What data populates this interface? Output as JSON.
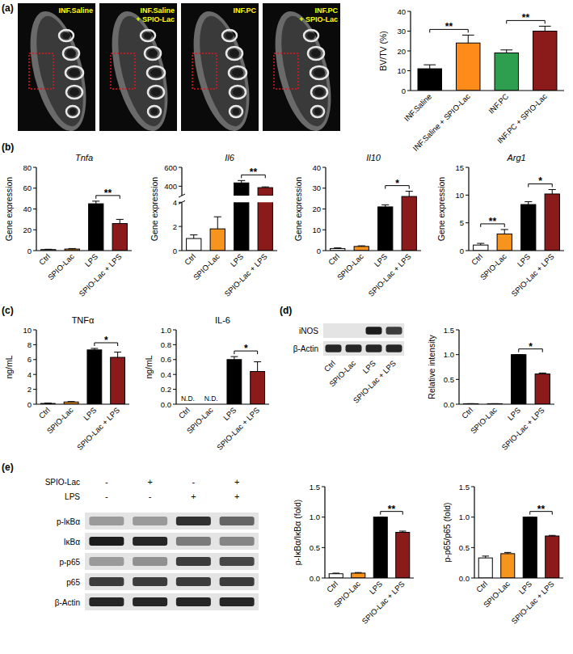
{
  "panel_labels": [
    "(a)",
    "(b)",
    "(c)",
    "(d)",
    "(e)"
  ],
  "images": [
    {
      "label_lines": [
        "INF.Saline"
      ]
    },
    {
      "label_lines": [
        "INF.Saline",
        "+ SPIO-Lac"
      ]
    },
    {
      "label_lines": [
        "INF.PC"
      ]
    },
    {
      "label_lines": [
        "INF.PC",
        "+ SPIO-Lac"
      ]
    }
  ],
  "blots": [
    {
      "categories": [
        "Ctrl",
        "SPIO-Lac",
        "LPS",
        "SPIO-Lac + LPS"
      ],
      "rows": [
        {
          "label": "iNOS",
          "bands": [
            0,
            0,
            0.95,
            0.8
          ]
        },
        {
          "label": "β-Actin",
          "bands": [
            0.9,
            0.9,
            0.9,
            0.9
          ]
        }
      ]
    },
    {
      "conditions": [
        {
          "label": "SPIO-Lac",
          "signs": [
            "-",
            "+",
            "-",
            "+"
          ]
        },
        {
          "label": "LPS",
          "signs": [
            "-",
            "-",
            "+",
            "+"
          ]
        }
      ],
      "rows": [
        {
          "label": "p-IκBα",
          "bands": [
            0.35,
            0.35,
            0.85,
            0.6
          ]
        },
        {
          "label": "IκBα",
          "bands": [
            0.95,
            0.9,
            0.5,
            0.45
          ]
        },
        {
          "label": "p-p65",
          "bands": [
            0.35,
            0.4,
            0.8,
            0.75
          ]
        },
        {
          "label": "p65",
          "bands": [
            0.8,
            0.8,
            0.8,
            0.8
          ]
        },
        {
          "label": "β-Actin",
          "bands": [
            0.9,
            0.9,
            0.9,
            0.9
          ]
        }
      ]
    }
  ],
  "chart_data": [
    {
      "type": "bar",
      "y_label": "BV/TV (%)",
      "categories": [
        "INF.Saline",
        "INF.Saline + SPIO-Lac",
        "INF.PC",
        "INF.PC + SPIO-Lac"
      ],
      "values": [
        11,
        24,
        19,
        30
      ],
      "errors": [
        2,
        4,
        1.5,
        2.5
      ],
      "colors": [
        "#000000",
        "#ff8c1a",
        "#2e9e4f",
        "#8b1a1a"
      ],
      "ylim": [
        0,
        40
      ],
      "yticks": [
        0,
        10,
        20,
        30,
        40
      ],
      "significance": [
        {
          "from": 0,
          "to": 1,
          "label": "**"
        },
        {
          "from": 2,
          "to": 3,
          "label": "**"
        }
      ]
    },
    {
      "type": "bar",
      "title": "Tnfa",
      "y_label": "Gene expression",
      "categories": [
        "Ctrl",
        "SPIO-Lac",
        "LPS",
        "SPIO-Lac + LPS"
      ],
      "values": [
        1,
        1.5,
        45,
        26
      ],
      "errors": [
        0.3,
        0.5,
        2.5,
        4
      ],
      "colors": [
        "#ffffff",
        "#f7941d",
        "#000000",
        "#8b1a1a"
      ],
      "ylim": [
        0,
        80
      ],
      "yticks": [
        0,
        20,
        40,
        60,
        80
      ],
      "significance": [
        {
          "from": 2,
          "to": 3,
          "label": "**"
        }
      ]
    },
    {
      "type": "bar",
      "title": "Il6",
      "y_label": "Gene expression",
      "categories": [
        "Ctrl",
        "SPIO-Lac",
        "LPS",
        "SPIO-Lac + LPS"
      ],
      "values": [
        1,
        1.8,
        435,
        385
      ],
      "errors": [
        0.3,
        1,
        25,
        8
      ],
      "colors": [
        "#ffffff",
        "#f7941d",
        "#000000",
        "#8b1a1a"
      ],
      "axis_segments": [
        {
          "ylim": [
            0,
            4
          ],
          "yticks": [
            0,
            2,
            4
          ]
        },
        {
          "ylim": [
            300,
            600
          ],
          "yticks": [
            400,
            600
          ]
        }
      ],
      "significance": [
        {
          "from": 2,
          "to": 3,
          "label": "**"
        }
      ]
    },
    {
      "type": "bar",
      "title": "Il10",
      "y_label": "Gene expression",
      "categories": [
        "Ctrl",
        "SPIO-Lac",
        "LPS",
        "SPIO-Lac + LPS"
      ],
      "values": [
        1,
        2,
        21,
        26
      ],
      "errors": [
        0.3,
        0.3,
        1,
        2.5
      ],
      "colors": [
        "#ffffff",
        "#f7941d",
        "#000000",
        "#8b1a1a"
      ],
      "ylim": [
        0,
        40
      ],
      "yticks": [
        0,
        10,
        20,
        30,
        40
      ],
      "significance": [
        {
          "from": 2,
          "to": 3,
          "label": "*"
        }
      ]
    },
    {
      "type": "bar",
      "title": "Arg1",
      "y_label": "Gene expression",
      "categories": [
        "Ctrl",
        "SPIO-Lac",
        "LPS",
        "SPIO-Lac + LPS"
      ],
      "values": [
        1,
        3,
        8.3,
        10.2
      ],
      "errors": [
        0.3,
        0.8,
        0.5,
        0.8
      ],
      "colors": [
        "#ffffff",
        "#f7941d",
        "#000000",
        "#8b1a1a"
      ],
      "ylim": [
        0,
        15
      ],
      "yticks": [
        0,
        5,
        10,
        15
      ],
      "significance": [
        {
          "from": 0,
          "to": 1,
          "label": "**"
        },
        {
          "from": 2,
          "to": 3,
          "label": "*"
        }
      ]
    },
    {
      "type": "bar",
      "title": "TNFα",
      "y_label": "ng/mL",
      "categories": [
        "Ctrl",
        "SPIO-Lac",
        "LPS",
        "SPIO-Lac + LPS"
      ],
      "values": [
        0.1,
        0.3,
        7.3,
        6.3
      ],
      "errors": [
        0.05,
        0.05,
        0.2,
        0.7
      ],
      "colors": [
        "#ffffff",
        "#f7941d",
        "#000000",
        "#8b1a1a"
      ],
      "ylim": [
        0,
        10
      ],
      "yticks": [
        0,
        2,
        4,
        6,
        8,
        10
      ],
      "significance": [
        {
          "from": 2,
          "to": 3,
          "label": "*"
        }
      ]
    },
    {
      "type": "bar",
      "title": "IL-6",
      "y_label": "ng/mL",
      "categories": [
        "Ctrl",
        "SPIO-Lac",
        "LPS",
        "SPIO-Lac + LPS"
      ],
      "values": [
        null,
        null,
        0.6,
        0.44
      ],
      "errors": [
        null,
        null,
        0.04,
        0.13
      ],
      "value_labels": [
        "N.D.",
        "N.D.",
        null,
        null
      ],
      "colors": [
        "#ffffff",
        "#f7941d",
        "#000000",
        "#8b1a1a"
      ],
      "ylim": [
        0,
        1
      ],
      "yticks": [
        {
          "value": 0,
          "label": "0.0"
        },
        0.2,
        0.4,
        0.6,
        0.8,
        {
          "value": 1,
          "label": "1.0"
        }
      ],
      "significance": [
        {
          "from": 2,
          "to": 3,
          "label": "*"
        }
      ]
    },
    {
      "type": "bar",
      "y_label": "Relative intensity",
      "categories": [
        "Ctrl",
        "SPIO-Lac",
        "LPS",
        "SPIO-Lac + LPS"
      ],
      "values": [
        0.01,
        0.01,
        1,
        0.61
      ],
      "errors": [
        0,
        0,
        0,
        0.02
      ],
      "colors": [
        "#ffffff",
        "#f7941d",
        "#000000",
        "#8b1a1a"
      ],
      "ylim": [
        0,
        1.5
      ],
      "yticks": [
        {
          "value": 0,
          "label": "0.0"
        },
        0.5,
        {
          "value": 1,
          "label": "1.0"
        },
        1.5
      ],
      "significance": [
        {
          "from": 2,
          "to": 3,
          "label": "*"
        }
      ]
    },
    {
      "type": "bar",
      "y_label": "p-IκBα/IκBα (fold)",
      "categories": [
        "Ctrl",
        "SPIO-Lac",
        "LPS",
        "SPIO-Lac + LPS"
      ],
      "values": [
        0.07,
        0.08,
        1,
        0.75
      ],
      "errors": [
        0.01,
        0.01,
        0,
        0.02
      ],
      "colors": [
        "#ffffff",
        "#f7941d",
        "#000000",
        "#8b1a1a"
      ],
      "ylim": [
        0,
        1.5
      ],
      "yticks": [
        {
          "value": 0,
          "label": "0.0"
        },
        0.5,
        {
          "value": 1,
          "label": "1.0"
        },
        1.5
      ],
      "significance": [
        {
          "from": 2,
          "to": 3,
          "label": "**"
        }
      ]
    },
    {
      "type": "bar",
      "y_label": "p-p65/p65 (fold)",
      "categories": [
        "Ctrl",
        "SPIO-Lac",
        "LPS",
        "SPIO-Lac + LPS"
      ],
      "values": [
        0.33,
        0.4,
        1,
        0.69
      ],
      "errors": [
        0.03,
        0.02,
        0,
        0.01
      ],
      "colors": [
        "#ffffff",
        "#f7941d",
        "#000000",
        "#8b1a1a"
      ],
      "ylim": [
        0,
        1.5
      ],
      "yticks": [
        {
          "value": 0,
          "label": "0.0"
        },
        0.5,
        {
          "value": 1,
          "label": "1.0"
        },
        1.5
      ],
      "significance": [
        {
          "from": 2,
          "to": 3,
          "label": "**"
        }
      ]
    }
  ]
}
